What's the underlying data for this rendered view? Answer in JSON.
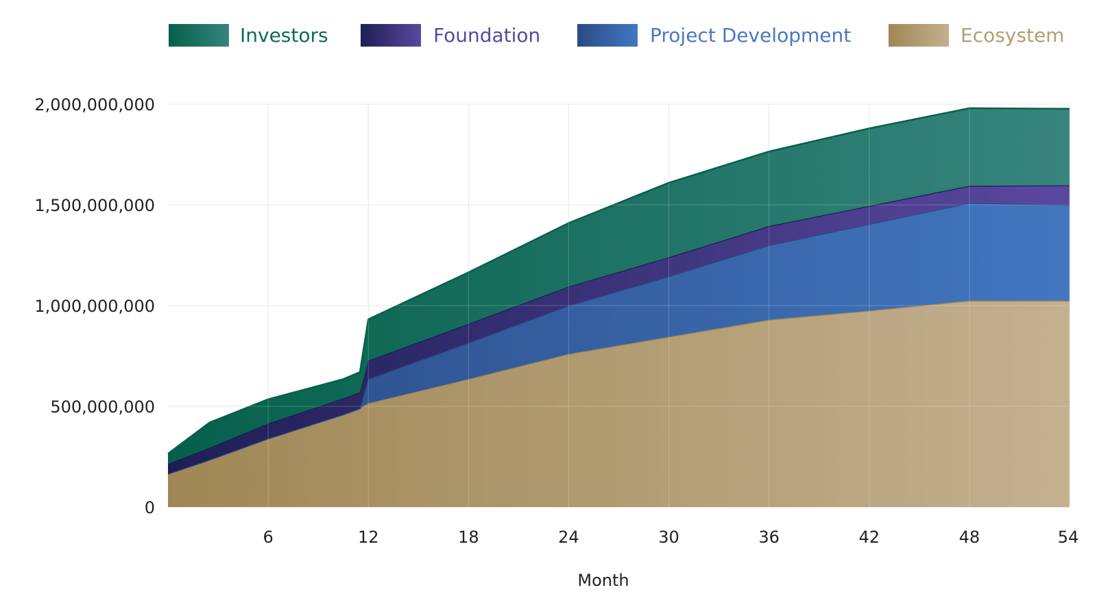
{
  "chart_data": {
    "type": "area",
    "stacked": true,
    "title": "",
    "xlabel": "Month",
    "ylabel": "",
    "xlim": [
      0,
      54
    ],
    "ylim": [
      0,
      2000000000
    ],
    "x_ticks": [
      6,
      12,
      18,
      24,
      30,
      36,
      42,
      48,
      54
    ],
    "y_ticks": [
      0,
      500000000,
      1000000000,
      1500000000,
      2000000000
    ],
    "y_tick_labels": [
      "0",
      "500,000,000",
      "1,000,000,000",
      "1,500,000,000",
      "2,000,000,000"
    ],
    "grid": true,
    "legend_position": "top",
    "x": [
      0,
      2.5,
      6,
      10.5,
      11.5,
      12,
      18,
      24,
      30,
      36,
      42,
      48,
      54
    ],
    "series": [
      {
        "name": "Ecosystem",
        "color_start": "#A08755",
        "color_end": "#C3B08F",
        "label_color": "#B39E72",
        "values": [
          165000000,
          235000000,
          340000000,
          460000000,
          490000000,
          515000000,
          635000000,
          760000000,
          845000000,
          930000000,
          975000000,
          1025000000,
          1025000000
        ]
      },
      {
        "name": "Project Development",
        "color_start": "#2A4B86",
        "color_end": "#4277C0",
        "label_color": "#4A78C0",
        "values": [
          0,
          0,
          0,
          0,
          0,
          120000000,
          180000000,
          240000000,
          300000000,
          370000000,
          430000000,
          485000000,
          475000000
        ]
      },
      {
        "name": "Foundation",
        "color_start": "#1E1E55",
        "color_end": "#5A48A0",
        "label_color": "#5A48A0",
        "values": [
          50000000,
          60000000,
          75000000,
          80000000,
          80000000,
          92000000,
          95000000,
          95000000,
          95000000,
          95000000,
          90000000,
          85000000,
          97000000
        ]
      },
      {
        "name": "Investors",
        "color_start": "#05604A",
        "color_end": "#37857E",
        "label_color": "#0E6A58",
        "values": [
          50000000,
          125000000,
          120000000,
          95000000,
          100000000,
          205000000,
          255000000,
          315000000,
          370000000,
          370000000,
          385000000,
          385000000,
          380000000
        ]
      }
    ],
    "legend_order": [
      "Investors",
      "Foundation",
      "Project Development",
      "Ecosystem"
    ]
  }
}
